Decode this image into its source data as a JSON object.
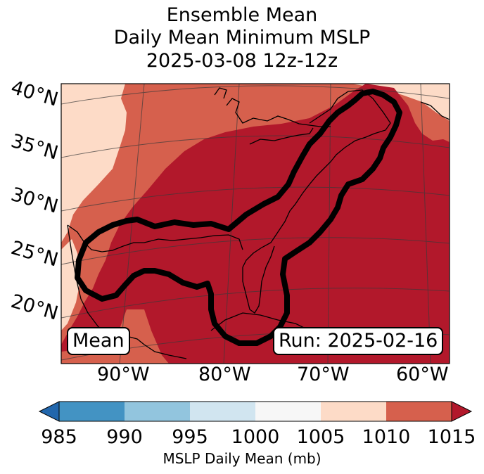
{
  "title": {
    "line1": "Ensemble Mean",
    "line2": "Daily Mean Minimum MSLP",
    "line3": "2025-03-08 12z-12z"
  },
  "map": {
    "lat_labels": [
      "40°N",
      "35°N",
      "30°N",
      "25°N",
      "20°N"
    ],
    "lon_labels": [
      "90°W",
      "80°W",
      "70°W",
      "60°W"
    ],
    "stat_label": "Mean",
    "run_label": "Run: 2025-02-16",
    "field_colors": {
      "1005-1010": "#fddbc7",
      "1010-1015": "#d6604d",
      ">1015": "#b2182b"
    },
    "contour_color": "#000000"
  },
  "colorbar": {
    "label": "MSLP Daily Mean (mb)",
    "ticks": [
      "985",
      "990",
      "995",
      "1000",
      "1005",
      "1010",
      "1015"
    ],
    "colors": [
      "#2166ac",
      "#4393c3",
      "#92c5de",
      "#d1e5f0",
      "#f7f7f7",
      "#fddbc7",
      "#d6604d",
      "#b2182b"
    ]
  }
}
